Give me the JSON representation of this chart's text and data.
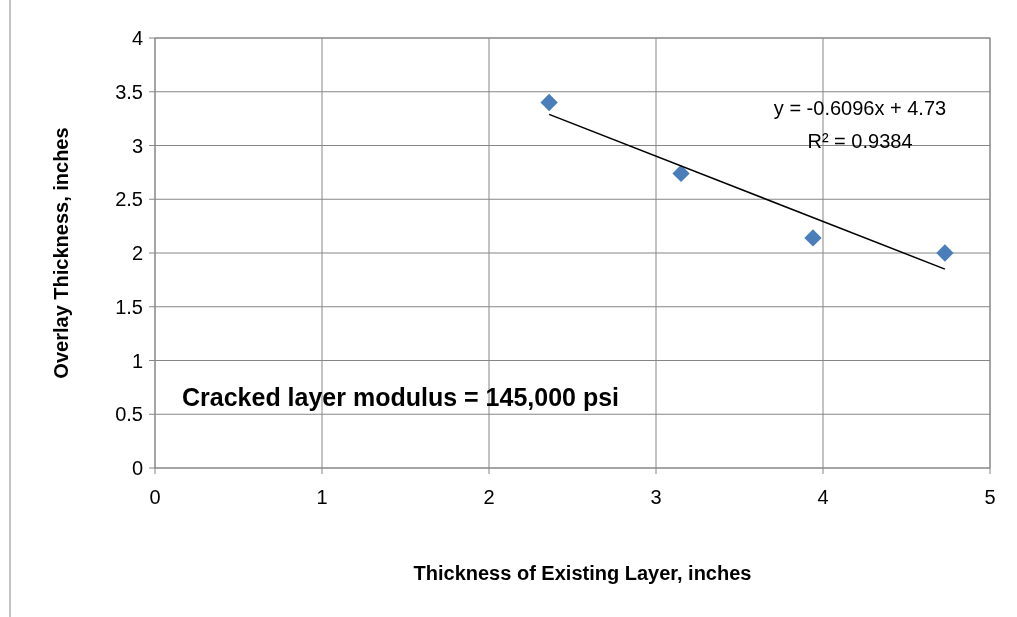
{
  "chart_data": {
    "type": "scatter",
    "xlabel": "Thickness of Existing Layer, inches",
    "ylabel": "Overlay Thickness,  inches",
    "xlim": [
      0,
      5
    ],
    "xticks": [
      0,
      1,
      2,
      3,
      4,
      5
    ],
    "ylim": [
      0,
      4
    ],
    "yticks": [
      0,
      0.5,
      1,
      1.5,
      2,
      2.5,
      3,
      3.5,
      4
    ],
    "grid": true,
    "series": [
      {
        "color": "#4a7ebb",
        "marker": "diamond",
        "x": [
          2.36,
          3.15,
          3.94,
          4.73
        ],
        "values": [
          3.4,
          2.74,
          2.14,
          2.0
        ]
      },
      {
        "type": "line",
        "color": "#000000",
        "marker": "none",
        "line_style": "solid",
        "x": [
          2.36,
          4.73
        ],
        "values": [
          3.29,
          1.85
        ]
      }
    ],
    "annotations": [
      "y = -0.6096x + 4.73",
      "R² = 0.9384",
      "Cracked layer modulus = 145,000 psi"
    ]
  }
}
